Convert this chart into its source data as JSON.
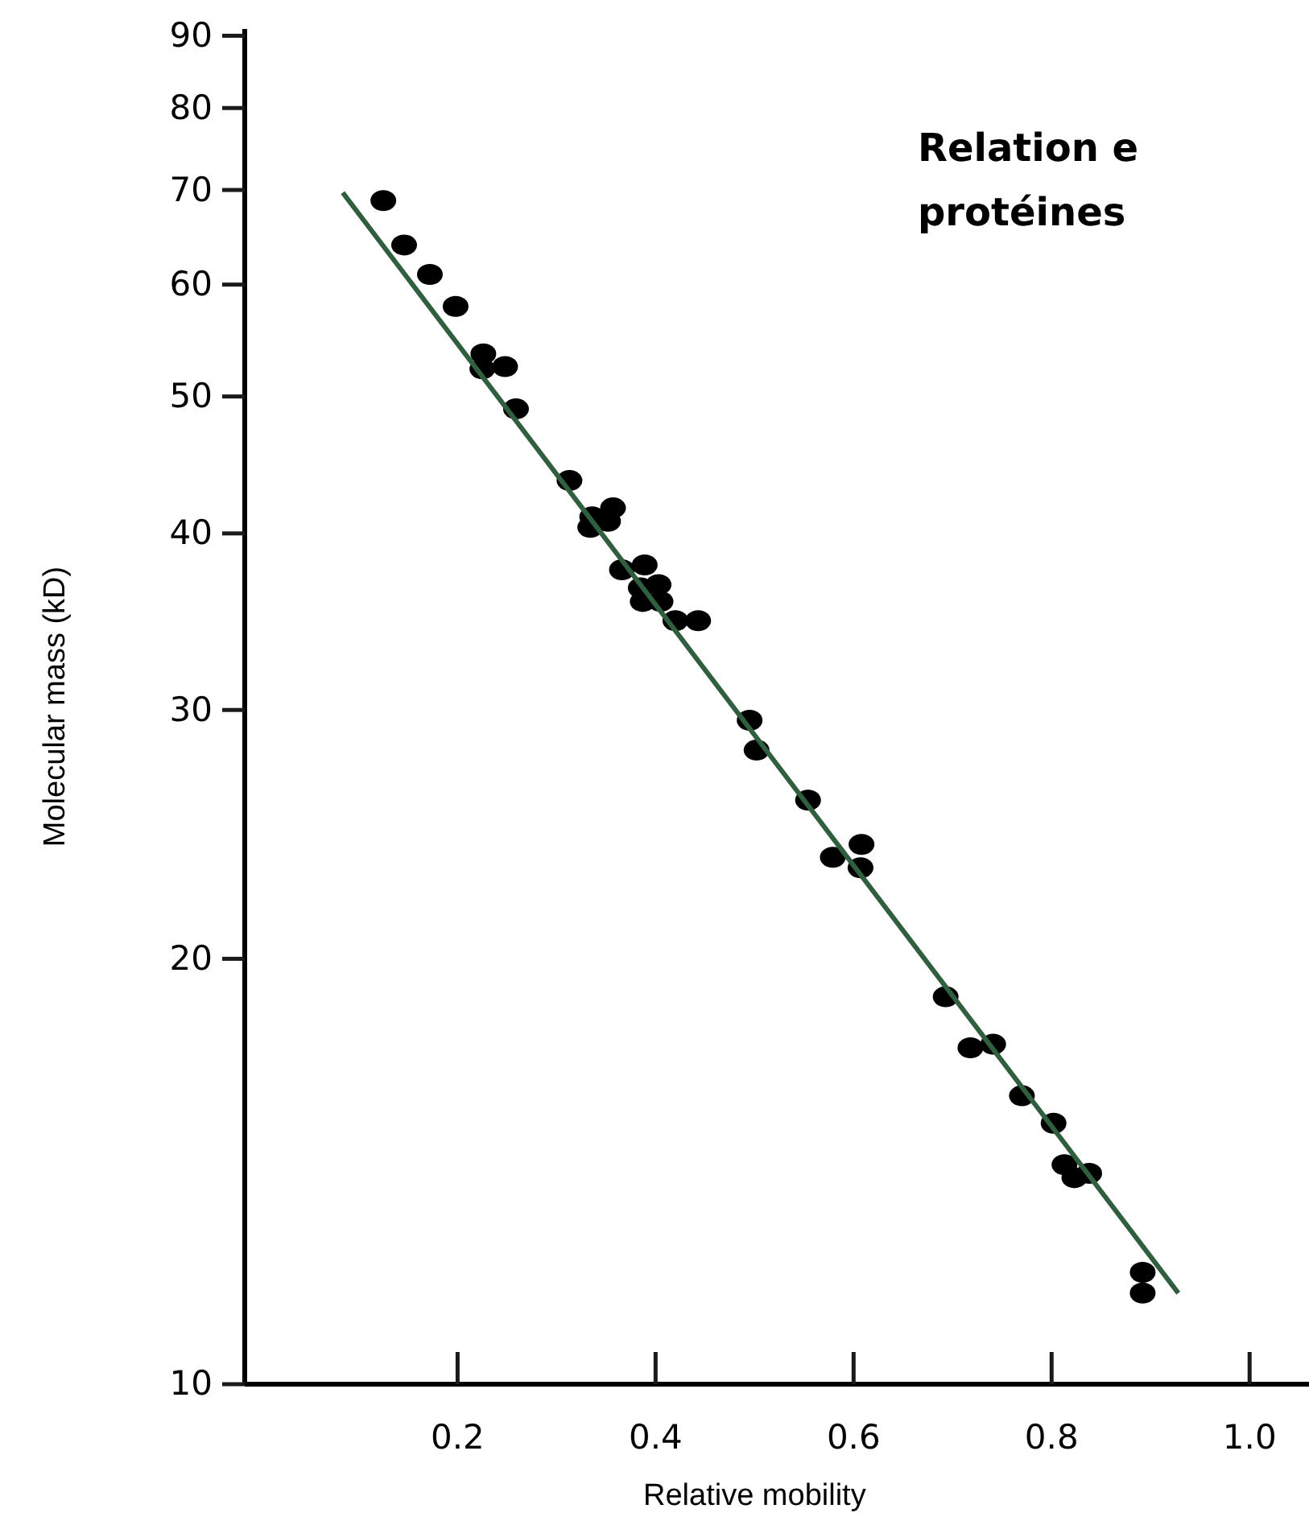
{
  "chart_data": {
    "type": "scatter",
    "title": "Relation e",
    "subtitle": "protéines",
    "xlabel": "Relative mobility",
    "ylabel": "Molecular mass (kD)",
    "log": "y",
    "xlim": [
      -0.015,
      1.06
    ],
    "xticks": [
      0.2,
      0.4,
      0.6,
      0.8,
      {
        "value": 1,
        "label": "1.0"
      }
    ],
    "ylim": [
      10,
      91
    ],
    "yticks": [
      10,
      20,
      30,
      40,
      50,
      60,
      70,
      80,
      90
    ],
    "series": [
      {
        "color": "#000000",
        "marker": "circle",
        "x": [
          0.125,
          0.146,
          0.172,
          0.198,
          0.226,
          0.225,
          0.248,
          0.259,
          0.313,
          0.336,
          0.357,
          0.334,
          0.352,
          0.366,
          0.389,
          0.385,
          0.403,
          0.387,
          0.405,
          0.42,
          0.443,
          0.495,
          0.502,
          0.554,
          0.579,
          0.608,
          0.607,
          0.693,
          0.718,
          0.741,
          0.77,
          0.802,
          0.813,
          0.823,
          0.838,
          0.892,
          0.892
        ],
        "values": [
          68.8,
          64.0,
          61.0,
          57.9,
          53.6,
          52.3,
          52.5,
          49.0,
          43.6,
          41.1,
          41.7,
          40.4,
          40.8,
          37.7,
          38.0,
          36.6,
          36.8,
          35.8,
          35.8,
          34.7,
          34.7,
          29.5,
          28.1,
          25.9,
          23.6,
          24.1,
          23.2,
          18.8,
          17.3,
          17.4,
          16.0,
          15.3,
          14.3,
          14.0,
          14.1,
          12.0,
          11.6
        ]
      },
      {
        "type": "line",
        "marker": "none",
        "color": "#2f5f3f",
        "x": [
          0.084,
          0.928
        ],
        "values": [
          69.7,
          11.6
        ]
      }
    ]
  }
}
